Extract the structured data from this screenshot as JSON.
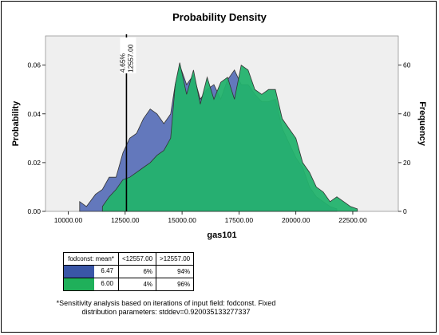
{
  "chart_data": {
    "type": "area",
    "title": "Probability Density",
    "xlabel": "gas101",
    "ylabel": "Probability",
    "y2label": "Frequency",
    "xlim": [
      9000,
      24500
    ],
    "ylim": [
      0,
      0.072
    ],
    "y2lim": [
      0,
      72
    ],
    "x_ticks": [
      "10000.00",
      "12500.00",
      "15000.00",
      "17500.00",
      "20000.00",
      "22500.00"
    ],
    "x_tick_values": [
      10000,
      12500,
      15000,
      17500,
      20000,
      22500
    ],
    "y_ticks": [
      "0.00",
      "0.02",
      "0.04",
      "0.06"
    ],
    "y_tick_values": [
      0,
      0.02,
      0.04,
      0.06
    ],
    "y2_ticks": [
      "0",
      "20",
      "40",
      "60"
    ],
    "y2_tick_values": [
      0,
      20,
      40,
      60
    ],
    "grid": false,
    "series": [
      {
        "color": "#5b71b8",
        "x": [
          10500,
          10800,
          11200,
          11500,
          11800,
          12100,
          12400,
          12700,
          13000,
          13300,
          13600,
          13900,
          14200,
          14500,
          14700,
          14900,
          15200,
          15500,
          15800,
          16100,
          16400,
          16700,
          17000,
          17300,
          17600,
          17900,
          18200,
          18500,
          18800,
          19100,
          19400,
          19700,
          20000,
          20300,
          20600,
          20900,
          21200,
          21500,
          21800
        ],
        "y": [
          0.004,
          0.002,
          0.007,
          0.009,
          0.014,
          0.014,
          0.024,
          0.03,
          0.032,
          0.038,
          0.042,
          0.04,
          0.036,
          0.04,
          0.052,
          0.06,
          0.052,
          0.056,
          0.046,
          0.05,
          0.052,
          0.046,
          0.054,
          0.058,
          0.052,
          0.052,
          0.048,
          0.045,
          0.045,
          0.046,
          0.034,
          0.028,
          0.022,
          0.018,
          0.01,
          0.006,
          0.004,
          0.002,
          0.001
        ]
      },
      {
        "color": "#23b26d",
        "x": [
          11500,
          11800,
          12100,
          12400,
          12700,
          13000,
          13300,
          13600,
          13900,
          14200,
          14500,
          14700,
          14900,
          15200,
          15500,
          15800,
          16100,
          16400,
          16700,
          17000,
          17300,
          17600,
          17900,
          18200,
          18500,
          18800,
          19100,
          19400,
          19700,
          20000,
          20300,
          20600,
          20900,
          21200,
          21500,
          21800,
          22100,
          22400,
          22700
        ],
        "y": [
          0.002,
          0.006,
          0.009,
          0.013,
          0.014,
          0.016,
          0.018,
          0.02,
          0.023,
          0.025,
          0.03,
          0.052,
          0.061,
          0.048,
          0.058,
          0.044,
          0.055,
          0.046,
          0.053,
          0.055,
          0.046,
          0.06,
          0.058,
          0.05,
          0.048,
          0.05,
          0.05,
          0.038,
          0.034,
          0.03,
          0.02,
          0.016,
          0.01,
          0.008,
          0.004,
          0.006,
          0.004,
          0.002,
          0.001
        ]
      }
    ],
    "marker": {
      "x": 12557,
      "label_top": "4.65%",
      "label_bottom": "12557.00"
    },
    "stats_table": {
      "headers": [
        "fodconst: mean*",
        "<12557.00",
        ">12557.00"
      ],
      "rows": [
        {
          "color": "#3a56a7",
          "label": "6.47",
          "below": "6%",
          "above": "94%"
        },
        {
          "color": "#1fb05a",
          "label": "6.00",
          "below": "4%",
          "above": "96%"
        }
      ]
    },
    "footnote": "*Sensitivity analysis based on iterations of input field: fodconst. Fixed distribution parameters: stddev=0.920035133277337"
  }
}
